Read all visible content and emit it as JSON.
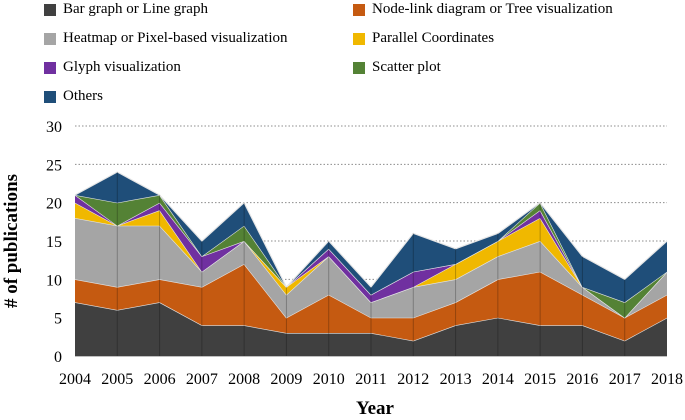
{
  "chart_data": {
    "type": "area",
    "stacked": true,
    "title": "",
    "xlabel": "Year",
    "ylabel": "# of publications",
    "ylim": [
      0,
      30
    ],
    "yticks": [
      "0",
      "5",
      "10",
      "15",
      "20",
      "25",
      "30"
    ],
    "grid": "horizontal dotted",
    "legend_position": "top",
    "categories": [
      "2004",
      "2005",
      "2006",
      "2007",
      "2008",
      "2009",
      "2010",
      "2011",
      "2012",
      "2013",
      "2014",
      "2015",
      "2016",
      "2017",
      "2018"
    ],
    "series": [
      {
        "name": "Bar graph or Line graph",
        "color": "#404040",
        "values": [
          7,
          6,
          7,
          4,
          4,
          3,
          3,
          3,
          2,
          4,
          5,
          4,
          4,
          2,
          5
        ]
      },
      {
        "name": "Node-link diagram or Tree visualization",
        "color": "#c55a11",
        "values": [
          3,
          3,
          3,
          5,
          8,
          2,
          5,
          2,
          3,
          3,
          5,
          7,
          4,
          3,
          3
        ]
      },
      {
        "name": "Heatmap or Pixel-based visualization",
        "color": "#a5a5a5",
        "values": [
          8,
          8,
          7,
          2,
          3,
          3,
          5,
          2,
          4,
          3,
          3,
          4,
          1,
          0,
          3
        ]
      },
      {
        "name": "Parallel Coordinates",
        "color": "#f0b800",
        "values": [
          2,
          0,
          2,
          0,
          0,
          1,
          0,
          0,
          0,
          2,
          2,
          3,
          0,
          0,
          0
        ]
      },
      {
        "name": "Glyph visualization",
        "color": "#7030a0",
        "values": [
          1,
          0,
          1,
          2,
          0,
          0,
          1,
          1,
          2,
          0,
          0,
          1,
          0,
          0,
          0
        ]
      },
      {
        "name": "Scatter plot",
        "color": "#548235",
        "values": [
          0,
          3,
          1,
          0,
          2,
          0,
          0,
          0,
          0,
          0,
          0,
          1,
          0,
          2,
          0
        ]
      },
      {
        "name": "Others",
        "color": "#1f4e79",
        "values": [
          0,
          4,
          0,
          2,
          3,
          0,
          1,
          1,
          5,
          2,
          1,
          0,
          4,
          3,
          4
        ]
      }
    ]
  }
}
